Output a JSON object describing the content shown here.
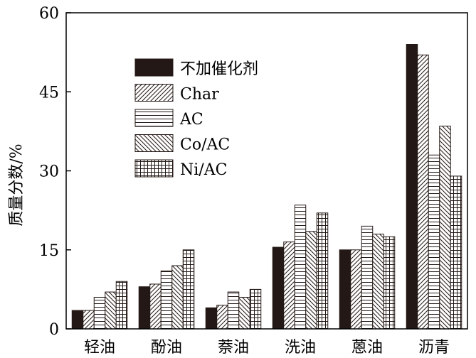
{
  "chart_data": {
    "type": "bar",
    "title": "",
    "xlabel": "",
    "ylabel": "质量分数/%",
    "ylim": [
      0,
      60
    ],
    "yticks": [
      0,
      15,
      30,
      45,
      60
    ],
    "grid": false,
    "legend_position": "top-left",
    "categories": [
      "轻油",
      "酚油",
      "萘油",
      "洗油",
      "蒽油",
      "沥青"
    ],
    "series": [
      {
        "name": "不加催化剂",
        "pattern": "solid",
        "color": "#231815",
        "values": [
          3.5,
          8.0,
          4.0,
          15.5,
          15.0,
          54.0
        ]
      },
      {
        "name": "Char",
        "pattern": "diagonal-forward",
        "color": "#231815",
        "values": [
          3.5,
          8.5,
          4.5,
          16.5,
          15.0,
          52.0
        ]
      },
      {
        "name": "AC",
        "pattern": "horizontal",
        "color": "#231815",
        "values": [
          6.0,
          11.0,
          7.0,
          23.5,
          19.5,
          33.0
        ]
      },
      {
        "name": "Co/AC",
        "pattern": "diagonal-back",
        "color": "#231815",
        "values": [
          7.0,
          12.0,
          6.0,
          18.5,
          18.0,
          38.5
        ]
      },
      {
        "name": "Ni/AC",
        "pattern": "grid",
        "color": "#231815",
        "values": [
          9.0,
          15.0,
          7.5,
          22.0,
          17.5,
          29.0
        ]
      }
    ]
  }
}
